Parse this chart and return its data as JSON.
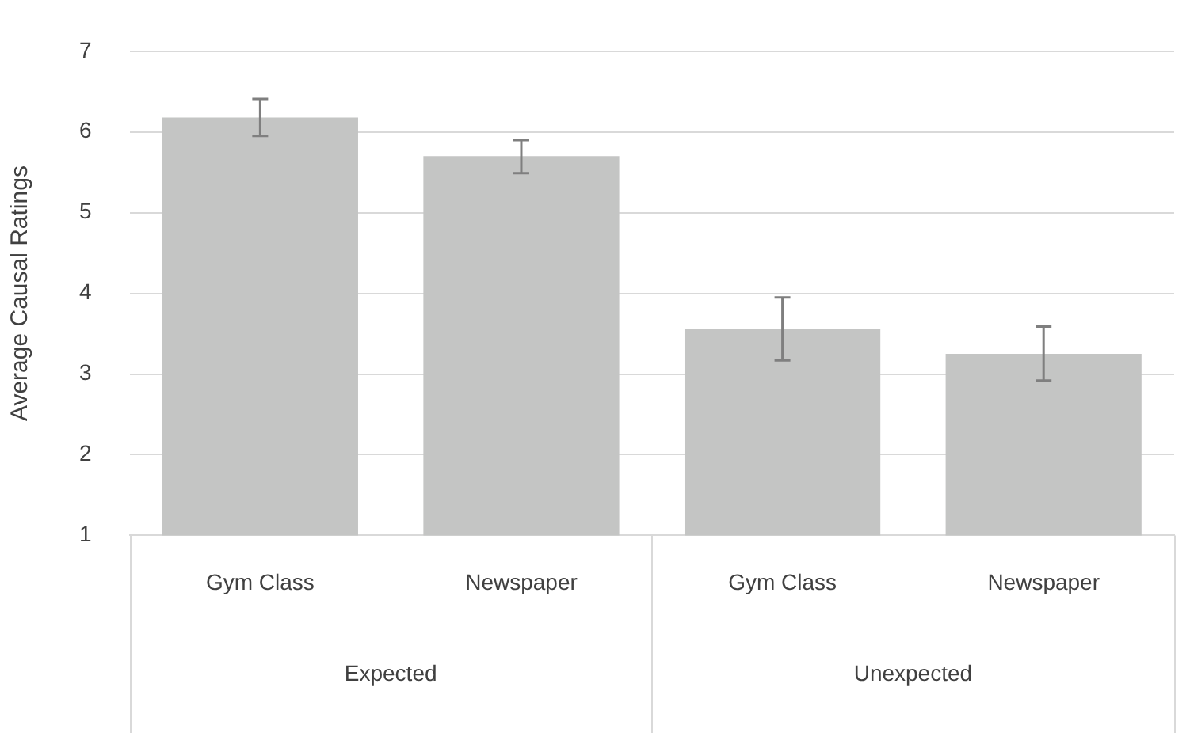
{
  "chart_data": {
    "type": "bar",
    "ylabel": "Average Causal Ratings",
    "categories": [
      "Gym Class",
      "Newspaper",
      "Gym Class",
      "Newspaper"
    ],
    "values": [
      6.18,
      5.7,
      3.56,
      3.25
    ],
    "errors": [
      [
        5.95,
        6.41
      ],
      [
        5.49,
        5.9
      ],
      [
        3.17,
        3.95
      ],
      [
        2.92,
        3.59
      ]
    ],
    "color": "#c4c5c4",
    "annotations": [
      "Expected",
      "Unexpected"
    ],
    "ylim": [
      1,
      7
    ],
    "yticks": [
      1,
      2,
      3,
      4,
      5,
      6,
      7
    ],
    "grid": "y",
    "legend": false
  }
}
